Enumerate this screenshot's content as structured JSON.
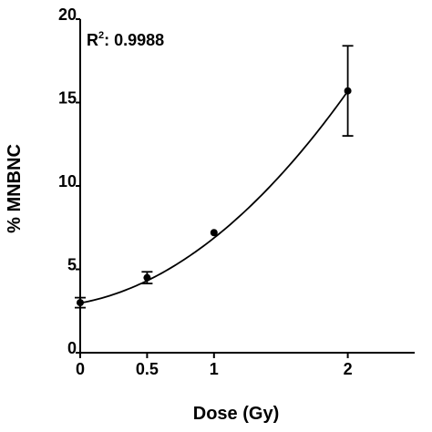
{
  "chart_data": {
    "type": "scatter",
    "title": "",
    "xlabel": "Dose (Gy)",
    "ylabel": "% MNBNC",
    "xlim": [
      0,
      2.5
    ],
    "ylim": [
      0,
      20
    ],
    "x_ticks": [
      0,
      0.5,
      1,
      2
    ],
    "x_tick_labels": [
      "0",
      "0.5",
      "1",
      "2"
    ],
    "y_ticks": [
      0,
      5,
      10,
      15,
      20
    ],
    "y_tick_labels": [
      "0",
      "5",
      "10",
      "15",
      "20"
    ],
    "grid": false,
    "series": [
      {
        "points": [
          {
            "x": 0,
            "y": 3.0,
            "err": 0.3
          },
          {
            "x": 0.5,
            "y": 4.5,
            "err": 0.35
          },
          {
            "x": 1,
            "y": 7.2,
            "err": 0
          },
          {
            "x": 2,
            "y": 15.7,
            "err": 2.7
          }
        ],
        "fit": {
          "type": "quadratic",
          "coefficients": {
            "c": 2.98,
            "a": 1.45,
            "b": 2.45
          }
        }
      }
    ],
    "annotation": {
      "base": "R",
      "sup": "2",
      "text": ": 0.9988"
    },
    "colors": {
      "line": "#000000",
      "marker": "#000000"
    }
  }
}
